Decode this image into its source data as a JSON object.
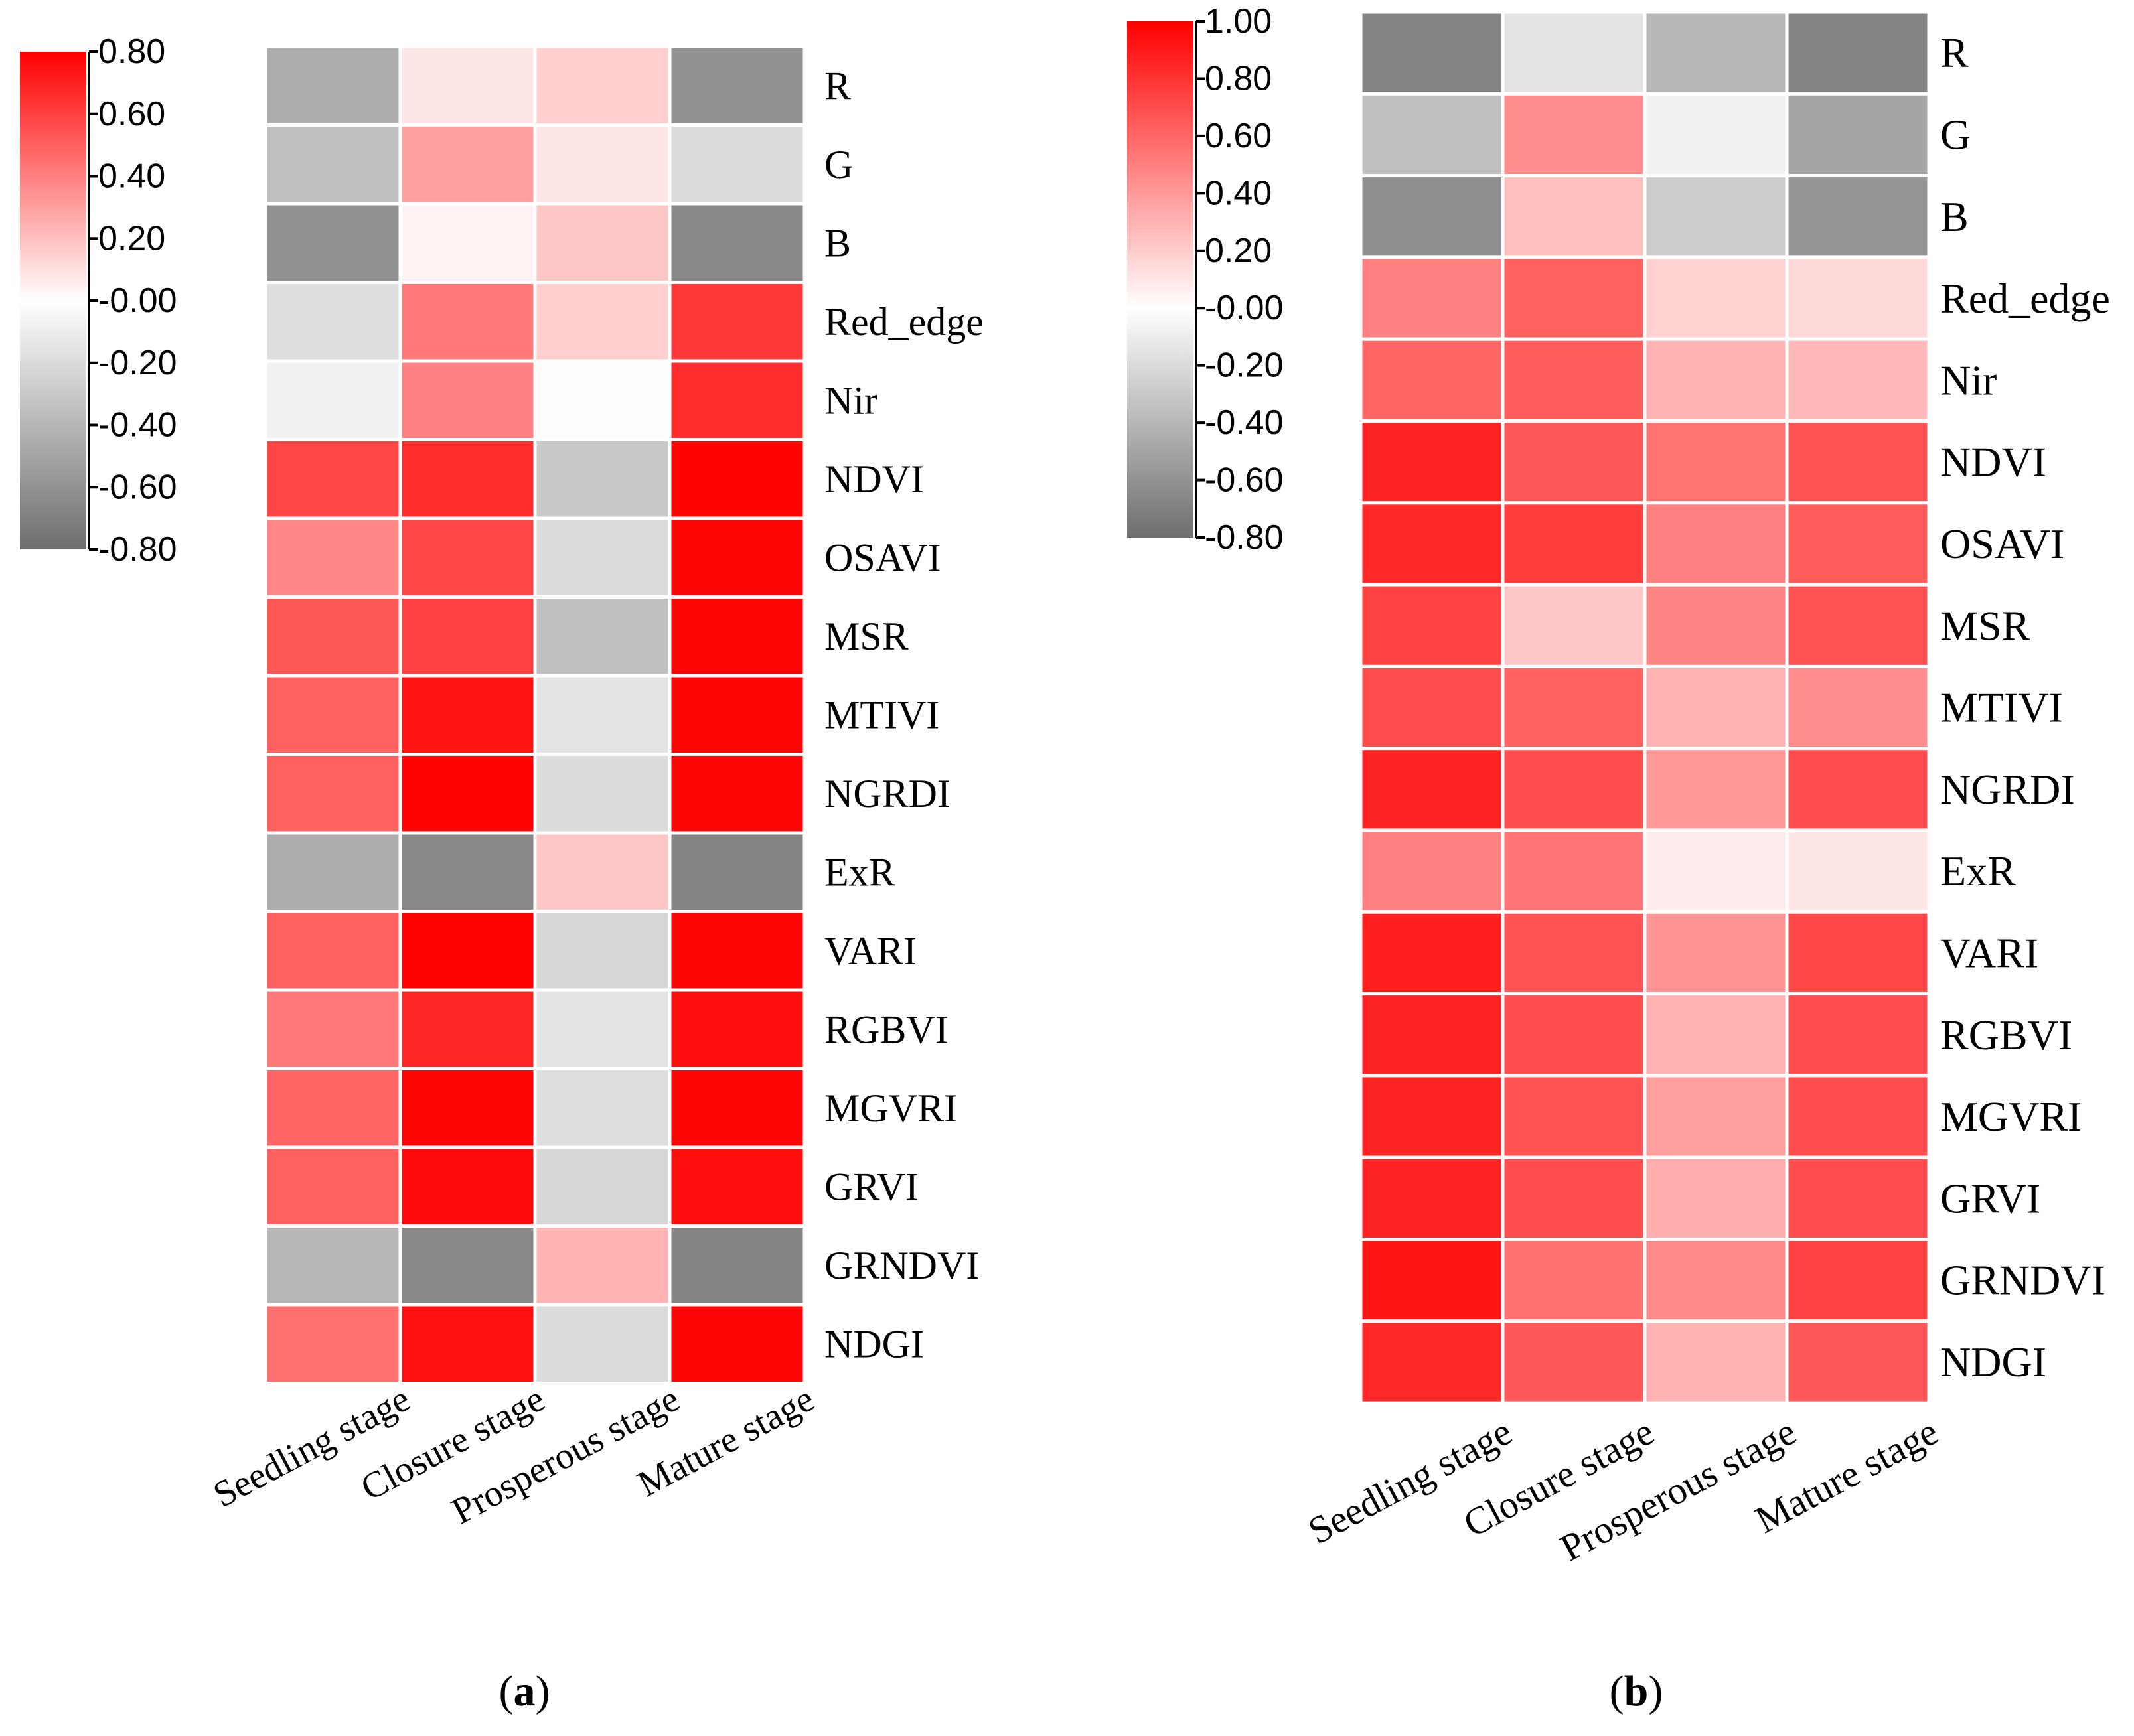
{
  "chart_data": [
    {
      "type": "heatmap",
      "panel_label": "(a)",
      "columns": [
        "Seedling stage",
        "Closure stage",
        "Prosperous stage",
        "Mature stage"
      ],
      "rows": [
        "R",
        "G",
        "B",
        "Red_edge",
        "Nir",
        "NDVI",
        "OSAVI",
        "MSR",
        "MTIVI",
        "NGRDI",
        "ExR",
        "VARI",
        "RGBVI",
        "MGVRI",
        "GRVI",
        "GRNDVI",
        "NDGI"
      ],
      "values": [
        [
          -0.45,
          0.08,
          0.15,
          -0.6
        ],
        [
          -0.35,
          0.3,
          0.08,
          -0.2
        ],
        [
          -0.6,
          0.04,
          0.18,
          -0.65
        ],
        [
          -0.18,
          0.42,
          0.15,
          0.62
        ],
        [
          -0.08,
          0.4,
          0.01,
          0.66
        ],
        [
          0.58,
          0.66,
          -0.3,
          0.79
        ],
        [
          0.38,
          0.58,
          -0.2,
          0.78
        ],
        [
          0.53,
          0.6,
          -0.35,
          0.78
        ],
        [
          0.5,
          0.74,
          -0.15,
          0.78
        ],
        [
          0.5,
          0.79,
          -0.2,
          0.78
        ],
        [
          -0.45,
          -0.65,
          0.18,
          -0.68
        ],
        [
          0.5,
          0.79,
          -0.22,
          0.78
        ],
        [
          0.42,
          0.68,
          -0.15,
          0.76
        ],
        [
          0.48,
          0.78,
          -0.18,
          0.78
        ],
        [
          0.5,
          0.77,
          -0.22,
          0.76
        ],
        [
          -0.4,
          -0.65,
          0.24,
          -0.68
        ],
        [
          0.45,
          0.75,
          -0.2,
          0.78
        ]
      ],
      "colorbar": {
        "min": -0.8,
        "max": 0.8,
        "ticks": [
          "0.80",
          "0.60",
          "0.40",
          "0.20",
          "-0.00",
          "-0.20",
          "-0.40",
          "-0.60",
          "-0.80"
        ],
        "tick_values": [
          0.8,
          0.6,
          0.4,
          0.2,
          0.0,
          -0.2,
          -0.4,
          -0.6,
          -0.8
        ]
      }
    },
    {
      "type": "heatmap",
      "panel_label": "(b)",
      "columns": [
        "Seedling stage",
        "Closure stage",
        "Prosperous stage",
        "Mature stage"
      ],
      "rows": [
        "R",
        "G",
        "B",
        "Red_edge",
        "Nir",
        "NDVI",
        "OSAVI",
        "MSR",
        "MTIVI",
        "NGRDI",
        "ExR",
        "VARI",
        "RGBVI",
        "MGVRI",
        "GRVI",
        "GRNDVI",
        "NDGI"
      ],
      "values": [
        [
          -0.68,
          -0.15,
          -0.4,
          -0.68
        ],
        [
          -0.35,
          0.45,
          -0.08,
          -0.5
        ],
        [
          -0.62,
          0.25,
          -0.28,
          -0.58
        ],
        [
          0.5,
          0.62,
          0.18,
          0.15
        ],
        [
          0.6,
          0.64,
          0.3,
          0.28
        ],
        [
          0.86,
          0.66,
          0.55,
          0.68
        ],
        [
          0.84,
          0.76,
          0.5,
          0.64
        ],
        [
          0.74,
          0.22,
          0.48,
          0.68
        ],
        [
          0.7,
          0.62,
          0.3,
          0.45
        ],
        [
          0.86,
          0.7,
          0.4,
          0.7
        ],
        [
          0.5,
          0.54,
          0.08,
          0.1
        ],
        [
          0.88,
          0.68,
          0.42,
          0.72
        ],
        [
          0.86,
          0.7,
          0.3,
          0.7
        ],
        [
          0.86,
          0.68,
          0.38,
          0.7
        ],
        [
          0.86,
          0.7,
          0.32,
          0.7
        ],
        [
          0.92,
          0.56,
          0.46,
          0.74
        ],
        [
          0.84,
          0.66,
          0.3,
          0.66
        ]
      ],
      "colorbar": {
        "min": -0.8,
        "max": 1.0,
        "ticks": [
          "1.00",
          "0.80",
          "0.60",
          "0.40",
          "0.20",
          "-0.00",
          "-0.20",
          "-0.40",
          "-0.60",
          "-0.80"
        ],
        "tick_values": [
          1.0,
          0.8,
          0.6,
          0.4,
          0.2,
          0.0,
          -0.2,
          -0.4,
          -0.6,
          -0.8
        ]
      }
    }
  ],
  "colors": {
    "positive_max": "#ff0000",
    "zero": "#ffffff",
    "negative_max": "#6e6e6e",
    "text": "#000000",
    "cell_border": "#ffffff"
  }
}
